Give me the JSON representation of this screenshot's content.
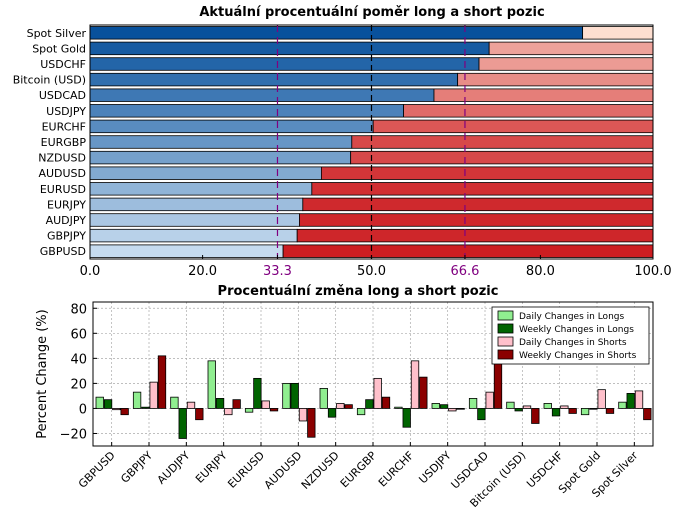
{
  "chart_data": [
    {
      "type": "bar",
      "orientation": "horizontal",
      "stacked": true,
      "title": "Aktuální procentuální poměr long a short pozic",
      "categories": [
        "Spot Silver",
        "Spot Gold",
        "USDCHF",
        "Bitcoin (USD)",
        "USDCAD",
        "USDJPY",
        "EURCHF",
        "EURGBP",
        "NZDUSD",
        "AUDUSD",
        "EURUSD",
        "EURJPY",
        "AUDJPY",
        "GBPJPY",
        "GBPUSD"
      ],
      "series": [
        {
          "values": [
            87.5,
            70.9,
            69.1,
            65.3,
            61.1,
            55.7,
            50.3,
            46.5,
            46.3,
            41.1,
            39.4,
            37.8,
            37.2,
            36.8,
            34.3
          ]
        },
        {
          "values": [
            12.5,
            29.1,
            30.9,
            34.7,
            38.9,
            44.3,
            49.7,
            53.5,
            53.7,
            58.9,
            60.6,
            62.2,
            62.8,
            63.2,
            65.7
          ]
        }
      ],
      "xlim": [
        0,
        100
      ],
      "xticks": [
        "0.0",
        "20.0",
        "33.3",
        "50.0",
        "66.6",
        "80.0",
        "100.0"
      ],
      "reference_lines": [
        33.3,
        50.0,
        66.6
      ],
      "colors": {
        "long_dark": "#08519c",
        "long_light": "#c6dbef",
        "short_dark": "#cb181d",
        "short_light": "#fde0d2",
        "ref_purple": "#800080",
        "ref_black": "#000000"
      }
    },
    {
      "type": "bar",
      "title": "Procentuální změna long a short pozic",
      "ylabel": "Percent Change (%)",
      "ylim": [
        -30,
        85
      ],
      "yticks": [
        "−20",
        "0",
        "20",
        "40",
        "60",
        "80"
      ],
      "grid": true,
      "legend_position": "top-right",
      "categories": [
        "GBPUSD",
        "GBPJPY",
        "AUDJPY",
        "EURJPY",
        "EURUSD",
        "AUDUSD",
        "NZDUSD",
        "EURGBP",
        "EURCHF",
        "USDJPY",
        "USDCAD",
        "Bitcoin (USD)",
        "USDCHF",
        "Spot Gold",
        "Spot Silver"
      ],
      "series": [
        {
          "name": "Daily Changes in Longs",
          "color": "#90ee90",
          "values": [
            9,
            13,
            9,
            38,
            -3,
            20,
            16,
            -5,
            1,
            4,
            8,
            5,
            4,
            -5,
            5
          ]
        },
        {
          "name": "Weekly Changes in Longs",
          "color": "#006400",
          "values": [
            7,
            1,
            -24,
            8,
            24,
            20,
            -7,
            7,
            -15,
            3,
            -9,
            -2,
            -6,
            0,
            12
          ]
        },
        {
          "name": "Daily Changes in Shorts",
          "color": "#ffc0cb",
          "values": [
            -1,
            21,
            5,
            -5,
            6,
            -10,
            4,
            24,
            38,
            -2,
            13,
            2,
            2,
            15,
            14
          ]
        },
        {
          "name": "Weekly Changes in Shorts",
          "color": "#8b0000",
          "values": [
            -5,
            42,
            -9,
            7,
            -2,
            -23,
            3,
            9,
            25,
            0,
            36,
            -12,
            -4,
            -4,
            -9
          ]
        }
      ]
    }
  ]
}
